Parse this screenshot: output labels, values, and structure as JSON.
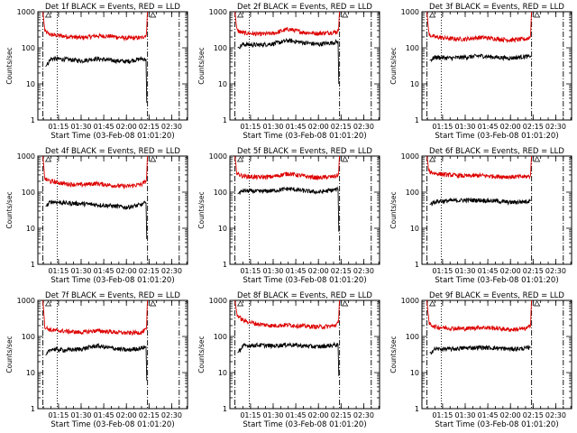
{
  "figure": {
    "panel_count": 9,
    "colors": {
      "background": "#ffffff",
      "events": "#000000",
      "lld": "#dd0000",
      "axes": "#000000"
    }
  },
  "chart_data": [
    {
      "type": "line",
      "title": "Det 1f BLACK = Events, RED = LLD",
      "xlabel": "Start Time (03-Feb-08 01:01:20)",
      "ylabel": "Counts/sec",
      "xlim": [
        "01:01:20",
        "02:40:30"
      ],
      "ylim": [
        1,
        1000
      ],
      "y_scale": "log",
      "x_ticks": [
        "01:15",
        "01:30",
        "01:45",
        "02:00",
        "02:15",
        "02:30"
      ],
      "y_ticks": [
        "1",
        "10",
        "100",
        "1000"
      ],
      "vertical_markers": {
        "dotted": "01:14:10",
        "dash_dot": [
          "01:04:40",
          "02:14:00",
          "02:35:00"
        ]
      },
      "series": [
        {
          "color": "#dd0000",
          "x": [
            "01:04:40",
            "01:06:00",
            "01:10:00",
            "01:20:00",
            "01:30:00",
            "01:40:00",
            "01:50:00",
            "02:00:00",
            "02:10:00",
            "02:13:20",
            "02:13:50",
            "02:14:00"
          ],
          "values": [
            1000,
            280,
            230,
            210,
            190,
            215,
            210,
            185,
            190,
            230,
            900,
            1000
          ]
        },
        {
          "color": "#000000",
          "x": [
            "01:06:30",
            "01:10:00",
            "01:20:00",
            "01:30:00",
            "01:40:00",
            "01:50:00",
            "02:00:00",
            "02:10:00",
            "02:13:00",
            "02:13:30"
          ],
          "values": [
            30,
            50,
            48,
            44,
            50,
            45,
            42,
            50,
            48,
            3
          ]
        }
      ]
    },
    {
      "type": "line",
      "title": "Det 2f BLACK = Events, RED = LLD",
      "xlabel": "Start Time (03-Feb-08 01:01:20)",
      "ylabel": "Counts/sec",
      "xlim": [
        "01:01:20",
        "02:40:30"
      ],
      "ylim": [
        1,
        1000
      ],
      "y_scale": "log",
      "x_ticks": [
        "01:15",
        "01:30",
        "01:45",
        "02:00",
        "02:15",
        "02:30"
      ],
      "y_ticks": [
        "1",
        "10",
        "100",
        "1000"
      ],
      "vertical_markers": {
        "dotted": "01:14:10",
        "dash_dot": [
          "01:04:40",
          "02:14:00",
          "02:35:00"
        ]
      },
      "series": [
        {
          "color": "#dd0000",
          "x": [
            "01:04:40",
            "01:06:00",
            "01:10:00",
            "01:20:00",
            "01:30:00",
            "01:40:00",
            "01:50:00",
            "02:00:00",
            "02:10:00",
            "02:13:20",
            "02:13:50",
            "02:14:00"
          ],
          "values": [
            1000,
            300,
            260,
            240,
            250,
            330,
            270,
            250,
            270,
            290,
            900,
            1000
          ]
        },
        {
          "color": "#000000",
          "x": [
            "01:06:30",
            "01:10:00",
            "01:20:00",
            "01:30:00",
            "01:40:00",
            "01:50:00",
            "02:00:00",
            "02:10:00",
            "02:13:00",
            "02:13:30"
          ],
          "values": [
            100,
            125,
            120,
            130,
            160,
            140,
            125,
            140,
            150,
            10
          ]
        }
      ]
    },
    {
      "type": "line",
      "title": "Det 3f BLACK = Events, RED = LLD",
      "xlabel": "Start Time (03-Feb-08 01:01:20)",
      "ylabel": "Counts/sec",
      "xlim": [
        "01:01:20",
        "02:40:30"
      ],
      "ylim": [
        1,
        1000
      ],
      "y_scale": "log",
      "x_ticks": [
        "01:15",
        "01:30",
        "01:45",
        "02:00",
        "02:15",
        "02:30"
      ],
      "y_ticks": [
        "1",
        "10",
        "100",
        "1000"
      ],
      "vertical_markers": {
        "dotted": "01:14:10",
        "dash_dot": [
          "01:04:40",
          "02:14:00",
          "02:35:00"
        ]
      },
      "series": [
        {
          "color": "#dd0000",
          "x": [
            "01:04:40",
            "01:06:00",
            "01:10:00",
            "01:20:00",
            "01:30:00",
            "01:40:00",
            "01:50:00",
            "02:00:00",
            "02:10:00",
            "02:13:20",
            "02:13:50",
            "02:14:00"
          ],
          "values": [
            1000,
            230,
            200,
            180,
            175,
            195,
            180,
            165,
            175,
            200,
            900,
            1000
          ]
        },
        {
          "color": "#000000",
          "x": [
            "01:06:30",
            "01:10:00",
            "01:20:00",
            "01:30:00",
            "01:40:00",
            "01:50:00",
            "02:00:00",
            "02:10:00",
            "02:13:00",
            "02:13:30"
          ],
          "values": [
            45,
            55,
            52,
            55,
            60,
            55,
            52,
            58,
            55,
            60
          ]
        }
      ]
    },
    {
      "type": "line",
      "title": "Det 4f BLACK = Events, RED = LLD",
      "xlabel": "Start Time (03-Feb-08 01:01:20)",
      "ylabel": "Counts/sec",
      "xlim": [
        "01:01:20",
        "02:40:30"
      ],
      "ylim": [
        1,
        1000
      ],
      "y_scale": "log",
      "x_ticks": [
        "01:15",
        "01:30",
        "01:45",
        "02:00",
        "02:15",
        "02:30"
      ],
      "y_ticks": [
        "1",
        "10",
        "100",
        "1000"
      ],
      "vertical_markers": {
        "dotted": "01:14:10",
        "dash_dot": [
          "01:04:40",
          "02:14:00",
          "02:35:00"
        ]
      },
      "series": [
        {
          "color": "#dd0000",
          "x": [
            "01:04:40",
            "01:06:00",
            "01:10:00",
            "01:20:00",
            "01:30:00",
            "01:40:00",
            "01:50:00",
            "02:00:00",
            "02:10:00",
            "02:13:20",
            "02:13:50",
            "02:14:00"
          ],
          "values": [
            1000,
            230,
            200,
            170,
            160,
            175,
            155,
            145,
            165,
            210,
            900,
            1000
          ]
        },
        {
          "color": "#000000",
          "x": [
            "01:06:30",
            "01:10:00",
            "01:20:00",
            "01:30:00",
            "01:40:00",
            "01:50:00",
            "02:00:00",
            "02:10:00",
            "02:13:00",
            "02:13:30"
          ],
          "values": [
            40,
            55,
            50,
            48,
            45,
            42,
            38,
            45,
            50,
            5
          ]
        }
      ]
    },
    {
      "type": "line",
      "title": "Det 5f BLACK = Events, RED = LLD",
      "xlabel": "Start Time (03-Feb-08 01:01:20)",
      "ylabel": "Counts/sec",
      "xlim": [
        "01:01:20",
        "02:40:30"
      ],
      "ylim": [
        1,
        1000
      ],
      "y_scale": "log",
      "x_ticks": [
        "01:15",
        "01:30",
        "01:45",
        "02:00",
        "02:15",
        "02:30"
      ],
      "y_ticks": [
        "1",
        "10",
        "100",
        "1000"
      ],
      "vertical_markers": {
        "dotted": "01:14:10",
        "dash_dot": [
          "01:04:40",
          "02:14:00",
          "02:35:00"
        ]
      },
      "series": [
        {
          "color": "#dd0000",
          "x": [
            "01:04:40",
            "01:06:00",
            "01:10:00",
            "01:20:00",
            "01:30:00",
            "01:40:00",
            "01:50:00",
            "02:00:00",
            "02:10:00",
            "02:13:20",
            "02:13:50",
            "02:14:00"
          ],
          "values": [
            1000,
            330,
            280,
            260,
            270,
            330,
            280,
            250,
            270,
            300,
            900,
            1000
          ]
        },
        {
          "color": "#000000",
          "x": [
            "01:06:30",
            "01:10:00",
            "01:20:00",
            "01:30:00",
            "01:40:00",
            "01:50:00",
            "02:00:00",
            "02:10:00",
            "02:13:00",
            "02:13:30"
          ],
          "values": [
            90,
            110,
            105,
            110,
            125,
            110,
            100,
            115,
            120,
            8
          ]
        }
      ]
    },
    {
      "type": "line",
      "title": "Det 6f BLACK = Events, RED = LLD",
      "xlabel": "Start Time (03-Feb-08 01:01:20)",
      "ylabel": "Counts/sec",
      "xlim": [
        "01:01:20",
        "02:40:30"
      ],
      "ylim": [
        1,
        1000
      ],
      "y_scale": "log",
      "x_ticks": [
        "01:15",
        "01:30",
        "01:45",
        "02:00",
        "02:15",
        "02:30"
      ],
      "y_ticks": [
        "1",
        "10",
        "100",
        "1000"
      ],
      "vertical_markers": {
        "dotted": "01:14:10",
        "dash_dot": [
          "01:04:40",
          "02:14:00",
          "02:35:00"
        ]
      },
      "series": [
        {
          "color": "#dd0000",
          "x": [
            "01:04:40",
            "01:06:00",
            "01:10:00",
            "01:20:00",
            "01:30:00",
            "01:40:00",
            "01:50:00",
            "02:00:00",
            "02:10:00",
            "02:13:20",
            "02:13:50",
            "02:14:00"
          ],
          "values": [
            1000,
            380,
            330,
            300,
            280,
            290,
            275,
            265,
            270,
            280,
            900,
            1000
          ]
        },
        {
          "color": "#000000",
          "x": [
            "01:06:30",
            "01:10:00",
            "01:20:00",
            "01:30:00",
            "01:40:00",
            "01:50:00",
            "02:00:00",
            "02:10:00",
            "02:13:00",
            "02:13:30"
          ],
          "values": [
            45,
            55,
            58,
            60,
            60,
            57,
            52,
            55,
            58,
            60
          ]
        }
      ]
    },
    {
      "type": "line",
      "title": "Det 7f BLACK = Events, RED = LLD",
      "xlabel": "Start Time (03-Feb-08 01:01:20)",
      "ylabel": "Counts/sec",
      "xlim": [
        "01:01:20",
        "02:40:30"
      ],
      "ylim": [
        1,
        1000
      ],
      "y_scale": "log",
      "x_ticks": [
        "01:15",
        "01:30",
        "01:45",
        "02:00",
        "02:15",
        "02:30"
      ],
      "y_ticks": [
        "1",
        "10",
        "100",
        "1000"
      ],
      "vertical_markers": {
        "dotted": "01:14:10",
        "dash_dot": [
          "01:04:40",
          "02:14:00",
          "02:35:00"
        ]
      },
      "series": [
        {
          "color": "#dd0000",
          "x": [
            "01:04:40",
            "01:06:00",
            "01:10:00",
            "01:20:00",
            "01:30:00",
            "01:40:00",
            "01:50:00",
            "02:00:00",
            "02:10:00",
            "02:13:20",
            "02:13:50",
            "02:14:00"
          ],
          "values": [
            1000,
            180,
            150,
            140,
            130,
            145,
            135,
            125,
            130,
            160,
            900,
            1000
          ]
        },
        {
          "color": "#000000",
          "x": [
            "01:06:30",
            "01:10:00",
            "01:20:00",
            "01:30:00",
            "01:40:00",
            "01:50:00",
            "02:00:00",
            "02:10:00",
            "02:13:00",
            "02:13:30"
          ],
          "values": [
            30,
            45,
            42,
            45,
            55,
            48,
            42,
            48,
            52,
            6
          ]
        }
      ]
    },
    {
      "type": "line",
      "title": "Det 8f BLACK = Events, RED = LLD",
      "xlabel": "Start Time (03-Feb-08 01:01:20)",
      "ylabel": "Counts/sec",
      "xlim": [
        "01:01:20",
        "02:40:30"
      ],
      "ylim": [
        1,
        1000
      ],
      "y_scale": "log",
      "x_ticks": [
        "01:15",
        "01:30",
        "01:45",
        "02:00",
        "02:15",
        "02:30"
      ],
      "y_ticks": [
        "1",
        "10",
        "100",
        "1000"
      ],
      "vertical_markers": {
        "dotted": "01:14:10",
        "dash_dot": [
          "01:04:40",
          "02:14:00",
          "02:35:00"
        ]
      },
      "series": [
        {
          "color": "#dd0000",
          "x": [
            "01:04:40",
            "01:06:00",
            "01:10:00",
            "01:20:00",
            "01:30:00",
            "01:40:00",
            "01:50:00",
            "02:00:00",
            "02:10:00",
            "02:13:20",
            "02:13:50",
            "02:14:00"
          ],
          "values": [
            1000,
            400,
            280,
            220,
            200,
            210,
            195,
            185,
            195,
            240,
            900,
            1000
          ]
        },
        {
          "color": "#000000",
          "x": [
            "01:06:30",
            "01:10:00",
            "01:20:00",
            "01:30:00",
            "01:40:00",
            "01:50:00",
            "02:00:00",
            "02:10:00",
            "02:13:00",
            "02:13:30"
          ],
          "values": [
            35,
            55,
            58,
            55,
            60,
            55,
            52,
            58,
            60,
            8
          ]
        }
      ]
    },
    {
      "type": "line",
      "title": "Det 9f BLACK = Events, RED = LLD",
      "xlabel": "Start Time (03-Feb-08 01:01:20)",
      "ylabel": "Counts/sec",
      "xlim": [
        "01:01:20",
        "02:40:30"
      ],
      "ylim": [
        1,
        1000
      ],
      "y_scale": "log",
      "x_ticks": [
        "01:15",
        "01:30",
        "01:45",
        "02:00",
        "02:15",
        "02:30"
      ],
      "y_ticks": [
        "1",
        "10",
        "100",
        "1000"
      ],
      "vertical_markers": {
        "dotted": "01:14:10",
        "dash_dot": [
          "01:04:40",
          "02:14:00",
          "02:35:00"
        ]
      },
      "series": [
        {
          "color": "#dd0000",
          "x": [
            "01:04:40",
            "01:06:00",
            "01:10:00",
            "01:20:00",
            "01:30:00",
            "01:40:00",
            "01:50:00",
            "02:00:00",
            "02:10:00",
            "02:13:20",
            "02:13:50",
            "02:14:00"
          ],
          "values": [
            1000,
            230,
            185,
            170,
            165,
            180,
            170,
            155,
            165,
            190,
            900,
            1000
          ]
        },
        {
          "color": "#000000",
          "x": [
            "01:06:30",
            "01:10:00",
            "01:20:00",
            "01:30:00",
            "01:40:00",
            "01:50:00",
            "02:00:00",
            "02:10:00",
            "02:13:00",
            "02:13:30"
          ],
          "values": [
            35,
            45,
            45,
            48,
            50,
            48,
            45,
            47,
            50,
            50
          ]
        }
      ]
    }
  ]
}
